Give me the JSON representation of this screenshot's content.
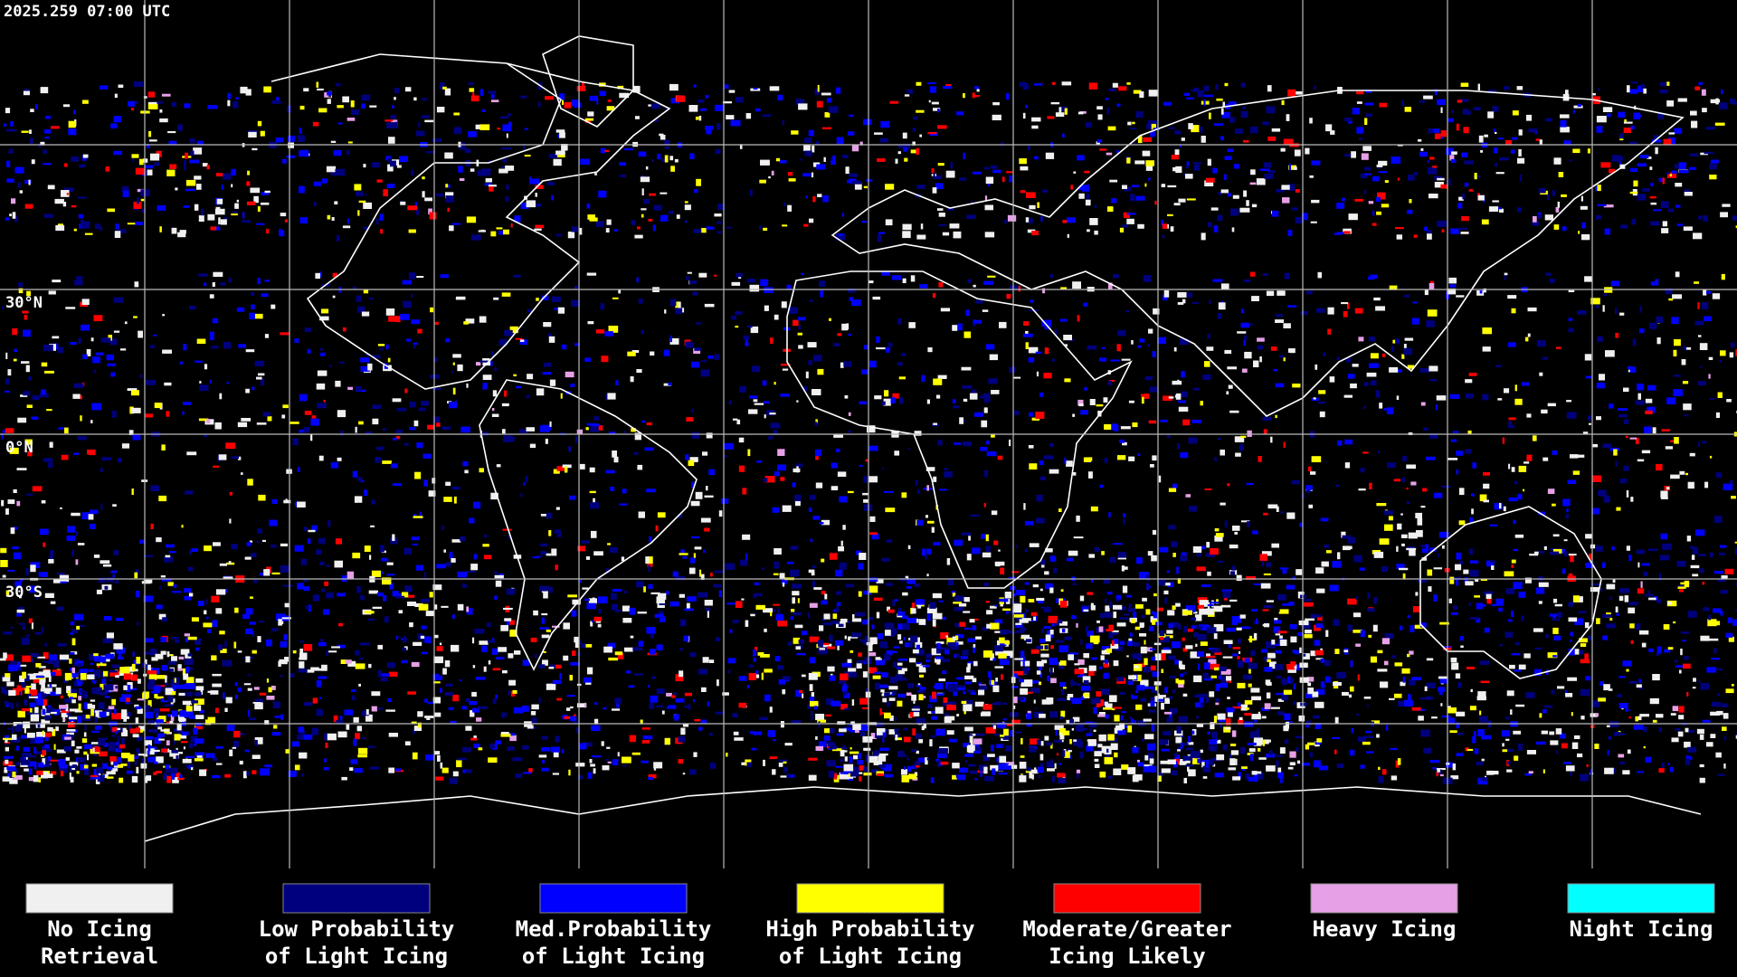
{
  "header": {
    "timestamp": "2025.259 07:00 UTC"
  },
  "map": {
    "latitude_labels": [
      "30°N",
      "0°N",
      "30°S"
    ]
  },
  "legend": {
    "items": [
      {
        "label": [
          "No Icing",
          "Retrieval"
        ],
        "color": "#f0f0f0"
      },
      {
        "label": [
          "Low Probability",
          "of Light Icing"
        ],
        "color": "#00007f"
      },
      {
        "label": [
          "Med.Probability",
          "of Light Icing"
        ],
        "color": "#0000ff"
      },
      {
        "label": [
          "High Probability",
          "of Light Icing"
        ],
        "color": "#ffff00"
      },
      {
        "label": [
          "Moderate/Greater",
          "Icing Likely"
        ],
        "color": "#ff0000"
      },
      {
        "label": [
          "Heavy Icing"
        ],
        "color": "#e6a0e6"
      },
      {
        "label": [
          "Night Icing"
        ],
        "color": "#00ffff"
      }
    ]
  }
}
